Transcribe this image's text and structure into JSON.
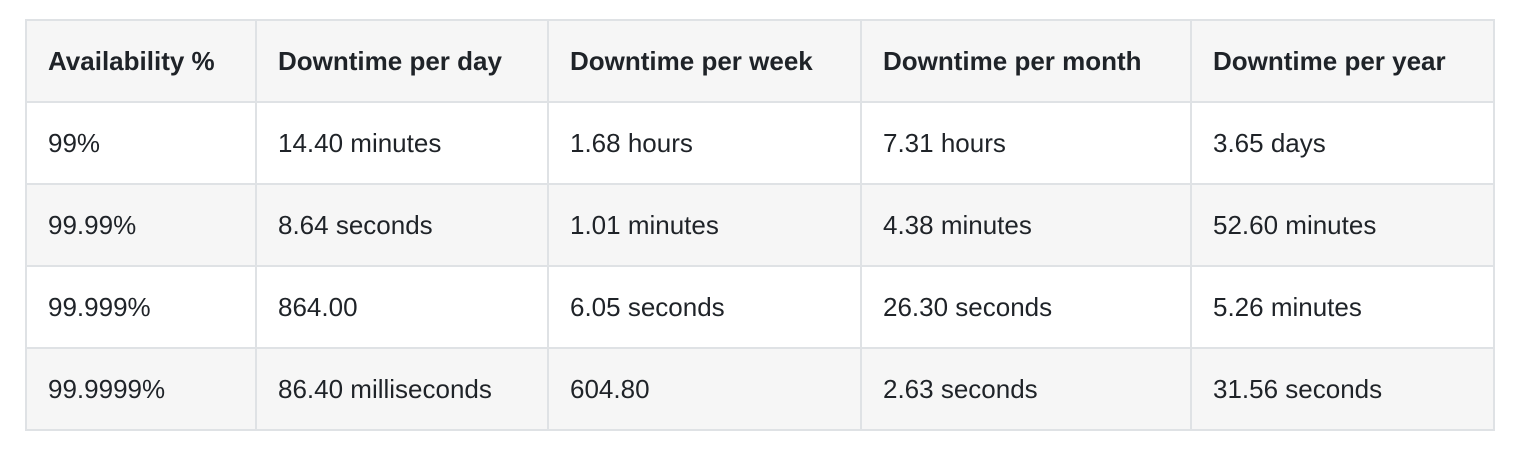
{
  "table": {
    "headers": [
      "Availability %",
      "Downtime per day",
      "Downtime per week",
      "Downtime per month",
      "Downtime per year"
    ],
    "rows": [
      [
        "99%",
        "14.40 minutes",
        "1.68 hours",
        "7.31 hours",
        "3.65 days"
      ],
      [
        "99.99%",
        "8.64 seconds",
        "1.01 minutes",
        "4.38 minutes",
        "52.60 minutes"
      ],
      [
        "99.999%",
        "864.00",
        "6.05 seconds",
        "26.30 seconds",
        "5.26 minutes"
      ],
      [
        "99.9999%",
        "86.40 milliseconds",
        "604.80",
        "2.63 seconds",
        "31.56 seconds"
      ]
    ]
  }
}
